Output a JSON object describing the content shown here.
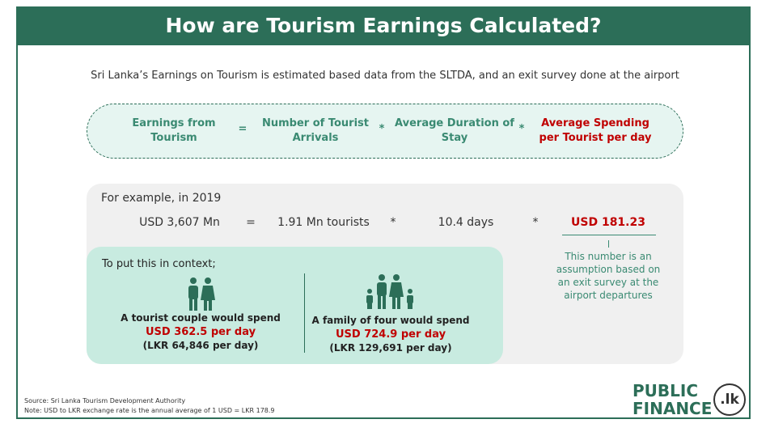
{
  "header": {
    "title": "How are Tourism Earnings Calculated?"
  },
  "intro": "Sri Lanka’s Earnings on Tourism is estimated based data from the SLTDA, and an exit survey done at the airport",
  "formula": {
    "terms": [
      "Earnings from Tourism",
      "Number of Tourist Arrivals",
      "Average Duration of Stay",
      "Average Spending per Tourist per day"
    ],
    "operators": [
      "=",
      "*",
      "*"
    ]
  },
  "example": {
    "heading": "For example, in 2019",
    "terms": [
      "USD 3,607 Mn",
      "1.91 Mn tourists",
      "10.4 days",
      "USD 181.23"
    ],
    "operators": [
      "=",
      "*",
      "*"
    ],
    "note": "This number is an assumption based on an exit survey at the airport departures"
  },
  "context": {
    "heading": "To put this in context;",
    "items": [
      {
        "label": "A tourist couple would spend",
        "usd": "USD 362.5 per day",
        "lkr": "(LKR 64,846 per day)"
      },
      {
        "label": "A family of four would spend",
        "usd": "USD 724.9 per day",
        "lkr": "(LKR 129,691 per day)"
      }
    ]
  },
  "source": "Source:  Sri Lanka Tourism Development Authority",
  "note": "Note: USD to LKR exchange rate is the annual average of 1 USD = LKR 178.9",
  "logo": {
    "line1": "PUBLIC",
    "line2": "FINANCE",
    "badge": ".lk"
  }
}
